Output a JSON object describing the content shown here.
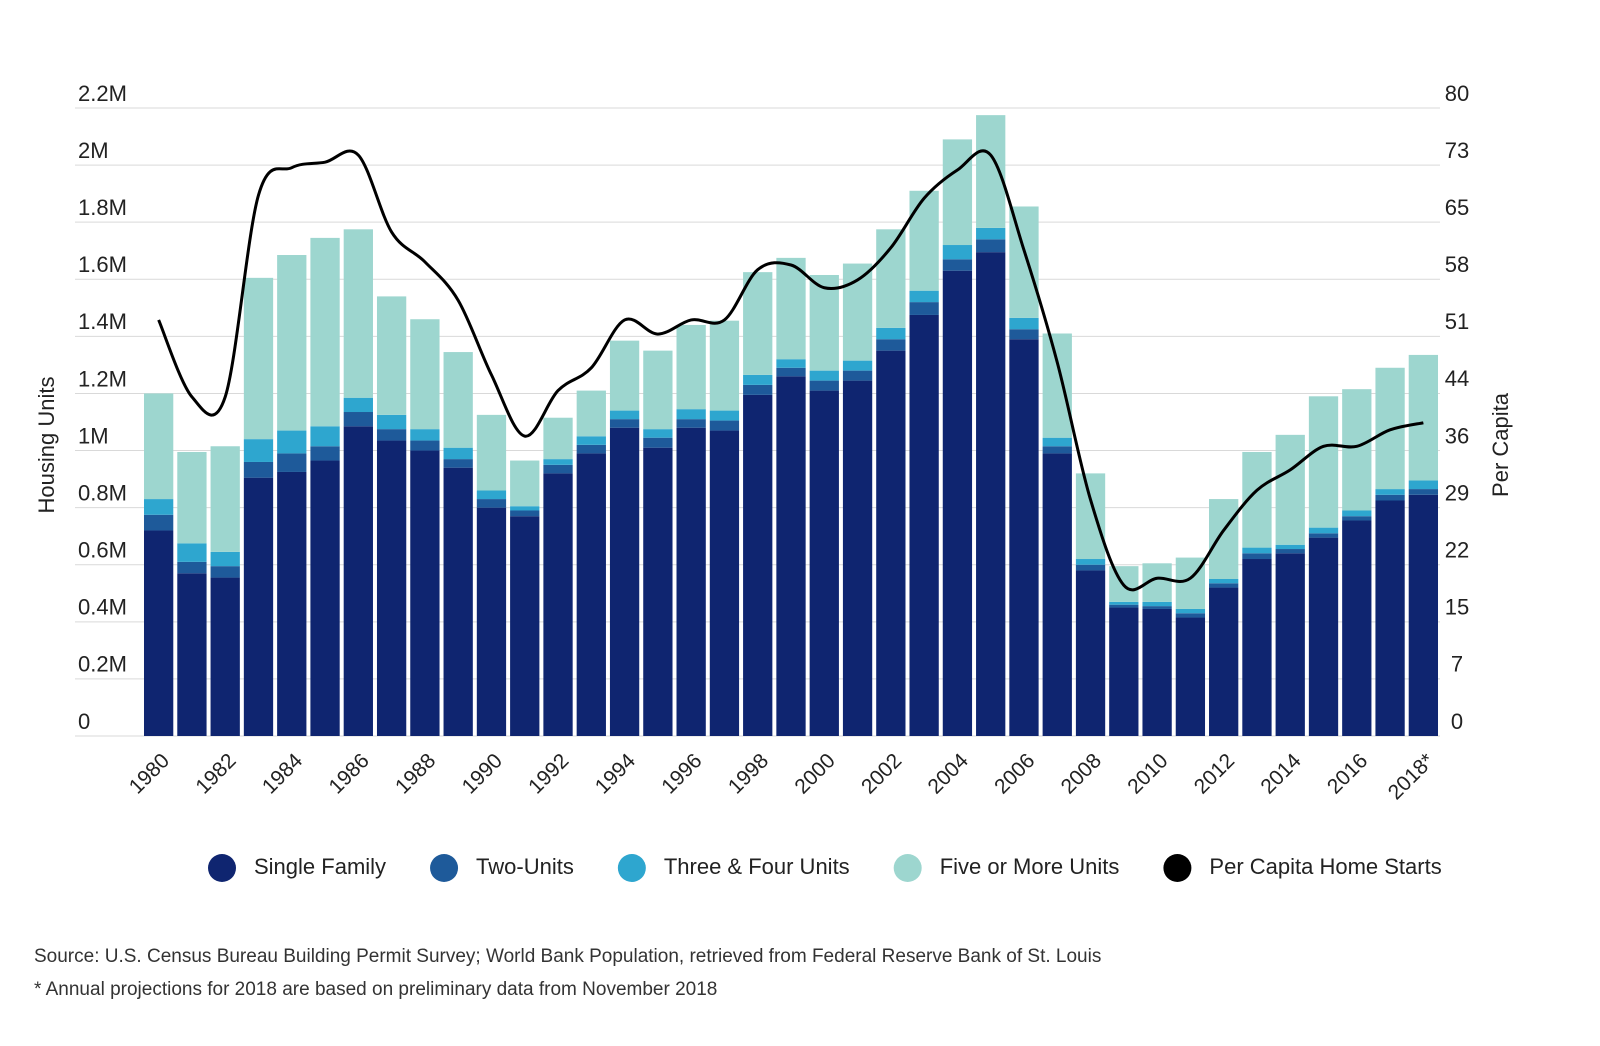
{
  "chart_data": {
    "type": "bar",
    "stacked": true,
    "categories": [
      "1980",
      null,
      "1982",
      null,
      "1984",
      null,
      "1986",
      null,
      "1988",
      null,
      "1990",
      null,
      "1992",
      null,
      "1994",
      null,
      "1996",
      null,
      "1998",
      null,
      "2000",
      null,
      "2002",
      null,
      "2004",
      null,
      "2006",
      null,
      "2008",
      null,
      "2010",
      null,
      "2012",
      null,
      "2014",
      null,
      "2016",
      null,
      "2018*"
    ],
    "series": [
      {
        "name": "Single Family",
        "color": "#0f2570",
        "values": [
          720000,
          570000,
          555000,
          905000,
          925000,
          965000,
          1085000,
          1035000,
          1000000,
          940000,
          800000,
          770000,
          920000,
          990000,
          1080000,
          1010000,
          1080000,
          1070000,
          1195000,
          1260000,
          1210000,
          1245000,
          1350000,
          1475000,
          1630000,
          1695000,
          1390000,
          990000,
          580000,
          450000,
          445000,
          415000,
          520000,
          620000,
          640000,
          695000,
          755000,
          825000,
          845000
        ]
      },
      {
        "name": "Two-Units",
        "color": "#1e5a9a",
        "values": [
          55000,
          40000,
          40000,
          55000,
          65000,
          50000,
          50000,
          40000,
          35000,
          30000,
          30000,
          20000,
          30000,
          30000,
          30000,
          35000,
          30000,
          35000,
          35000,
          30000,
          35000,
          35000,
          40000,
          45000,
          40000,
          45000,
          35000,
          25000,
          20000,
          10000,
          10000,
          15000,
          15000,
          20000,
          15000,
          15000,
          15000,
          20000,
          20000
        ]
      },
      {
        "name": "Three & Four Units",
        "color": "#2ea6cf",
        "values": [
          55000,
          65000,
          50000,
          80000,
          80000,
          70000,
          50000,
          50000,
          40000,
          40000,
          30000,
          15000,
          20000,
          30000,
          30000,
          30000,
          35000,
          35000,
          35000,
          30000,
          35000,
          35000,
          40000,
          40000,
          50000,
          40000,
          40000,
          30000,
          20000,
          10000,
          15000,
          15000,
          15000,
          20000,
          15000,
          20000,
          20000,
          20000,
          30000
        ]
      },
      {
        "name": "Five or More Units",
        "color": "#9dd6cf",
        "values": [
          370000,
          320000,
          370000,
          565000,
          615000,
          660000,
          590000,
          415000,
          385000,
          335000,
          265000,
          160000,
          145000,
          160000,
          245000,
          275000,
          295000,
          315000,
          360000,
          355000,
          335000,
          340000,
          345000,
          350000,
          370000,
          395000,
          390000,
          365000,
          300000,
          125000,
          135000,
          180000,
          280000,
          335000,
          385000,
          460000,
          425000,
          425000,
          440000
        ]
      },
      {
        "name": "Per Capita Home Starts",
        "color": "#000000",
        "type": "line",
        "axis": "y2",
        "values": [
          53,
          43.2,
          43.2,
          68.9,
          72.4,
          73.1,
          74,
          64.2,
          60.4,
          55.5,
          46,
          38.2,
          44,
          46.9,
          53,
          51.2,
          53,
          53,
          59.4,
          60,
          57.1,
          58.1,
          62.2,
          68.5,
          72.1,
          74,
          61.9,
          47.6,
          30.1,
          19.2,
          20.1,
          20.1,
          26.2,
          31.3,
          33.9,
          36.9,
          36.9,
          39,
          39.9
        ]
      }
    ],
    "ylabel": "Housing Units",
    "y2label": "Per Capita",
    "ylim": [
      0,
      2200000
    ],
    "yticks": [
      0,
      {
        "value": 200000,
        "label": "0.2M"
      },
      {
        "value": 400000,
        "label": "0.4M"
      },
      {
        "value": 600000,
        "label": "0.6M"
      },
      {
        "value": 800000,
        "label": "0.8M"
      },
      {
        "value": 1000000,
        "label": "1M"
      },
      {
        "value": 1200000,
        "label": "1.2M"
      },
      {
        "value": 1400000,
        "label": "1.4M"
      },
      {
        "value": 1600000,
        "label": "1.6M"
      },
      {
        "value": 1800000,
        "label": "1.8M"
      },
      {
        "value": 2000000,
        "label": "2M"
      },
      {
        "value": 2200000,
        "label": "2.2M"
      }
    ],
    "y2lim": [
      0,
      80
    ],
    "y2ticks": [
      0,
      {
        "value": 7.27,
        "label": "7"
      },
      {
        "value": 14.55,
        "label": "15"
      },
      {
        "value": 21.82,
        "label": "22"
      },
      {
        "value": 29.09,
        "label": "29"
      },
      {
        "value": 36.36,
        "label": "36"
      },
      {
        "value": 43.64,
        "label": "44"
      },
      {
        "value": 50.91,
        "label": "51"
      },
      {
        "value": 58.18,
        "label": "58"
      },
      {
        "value": 65.45,
        "label": "65"
      },
      {
        "value": 72.73,
        "label": "73"
      },
      80
    ],
    "grid": true,
    "legend": "bottom",
    "source": "Source: U.S. Census Bureau Building Permit Survey; World Bank Population, retrieved from Federal Reserve Bank of St. Louis",
    "note": "* Annual projections for 2018 are based on preliminary data from November 2018"
  }
}
